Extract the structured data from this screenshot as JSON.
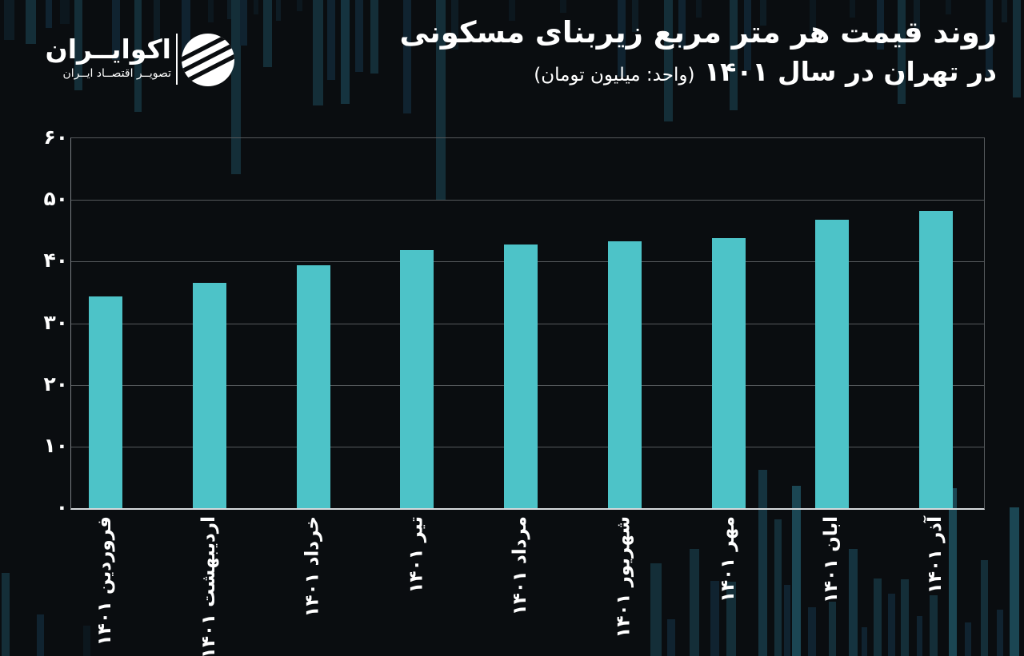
{
  "brand": {
    "name": "اکوایــران",
    "tagline": "تصویــر اقتصــاد ایــران"
  },
  "title": {
    "line1": "روند قیمت هر متر مربع زیربنای مسکونی",
    "line2_main": "در تهران در سال ۱۴۰۱",
    "line2_unit": "(واحد: میلیون تومان)"
  },
  "chart_data": {
    "type": "bar",
    "title": "روند قیمت هر متر مربع زیربنای مسکونی در تهران در سال ۱۴۰۱",
    "unit": "میلیون تومان",
    "categories": [
      "فروردین ۱۴۰۱",
      "اردیبهشت ۱۴۰۱",
      "خرداد ۱۴۰۱",
      "تیر ۱۴۰۱",
      "مرداد ۱۴۰۱",
      "شهریور ۱۴۰۱",
      "مهر ۱۴۰۱",
      "ابان ۱۴۰۱",
      "آذر ۱۴۰۱"
    ],
    "values": [
      34.4,
      36.6,
      39.4,
      41.8,
      42.8,
      43.3,
      43.8,
      46.8,
      48.2
    ],
    "ylim": [
      0,
      60
    ],
    "y_ticks": [
      {
        "value": 0,
        "label": "۰"
      },
      {
        "value": 10,
        "label": "۱۰"
      },
      {
        "value": 20,
        "label": "۲۰"
      },
      {
        "value": 30,
        "label": "۳۰"
      },
      {
        "value": 40,
        "label": "۴۰"
      },
      {
        "value": 50,
        "label": "۵۰"
      },
      {
        "value": 60,
        "label": "۶۰"
      }
    ],
    "bar_color": "#4dc3c8",
    "background_color": "#0a0d10",
    "grid": "horizontal",
    "legend": null,
    "x_label_rotation_deg": 90
  }
}
